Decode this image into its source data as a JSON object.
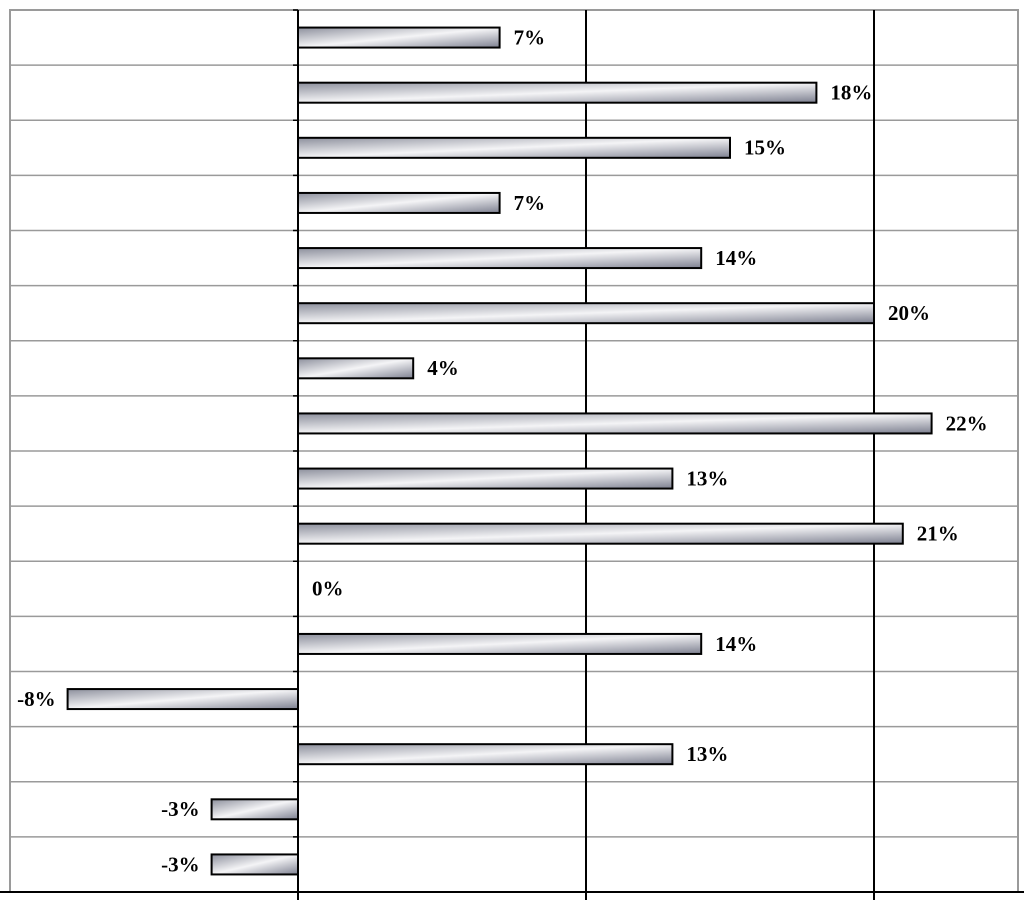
{
  "chart_data": {
    "type": "bar",
    "orientation": "horizontal",
    "values": [
      7,
      18,
      15,
      7,
      14,
      20,
      4,
      22,
      13,
      21,
      0,
      14,
      -8,
      13,
      -3,
      -3
    ],
    "value_labels": [
      "7%",
      "18%",
      "15%",
      "7%",
      "14%",
      "20%",
      "4%",
      "22%",
      "13%",
      "21%",
      "0%",
      "14%",
      "-8%",
      "13%",
      "-3%",
      "-3%"
    ],
    "color": "#a9acb6",
    "xlim": [
      -10,
      25
    ],
    "xticks": [
      0,
      10,
      20
    ],
    "grid": true
  }
}
